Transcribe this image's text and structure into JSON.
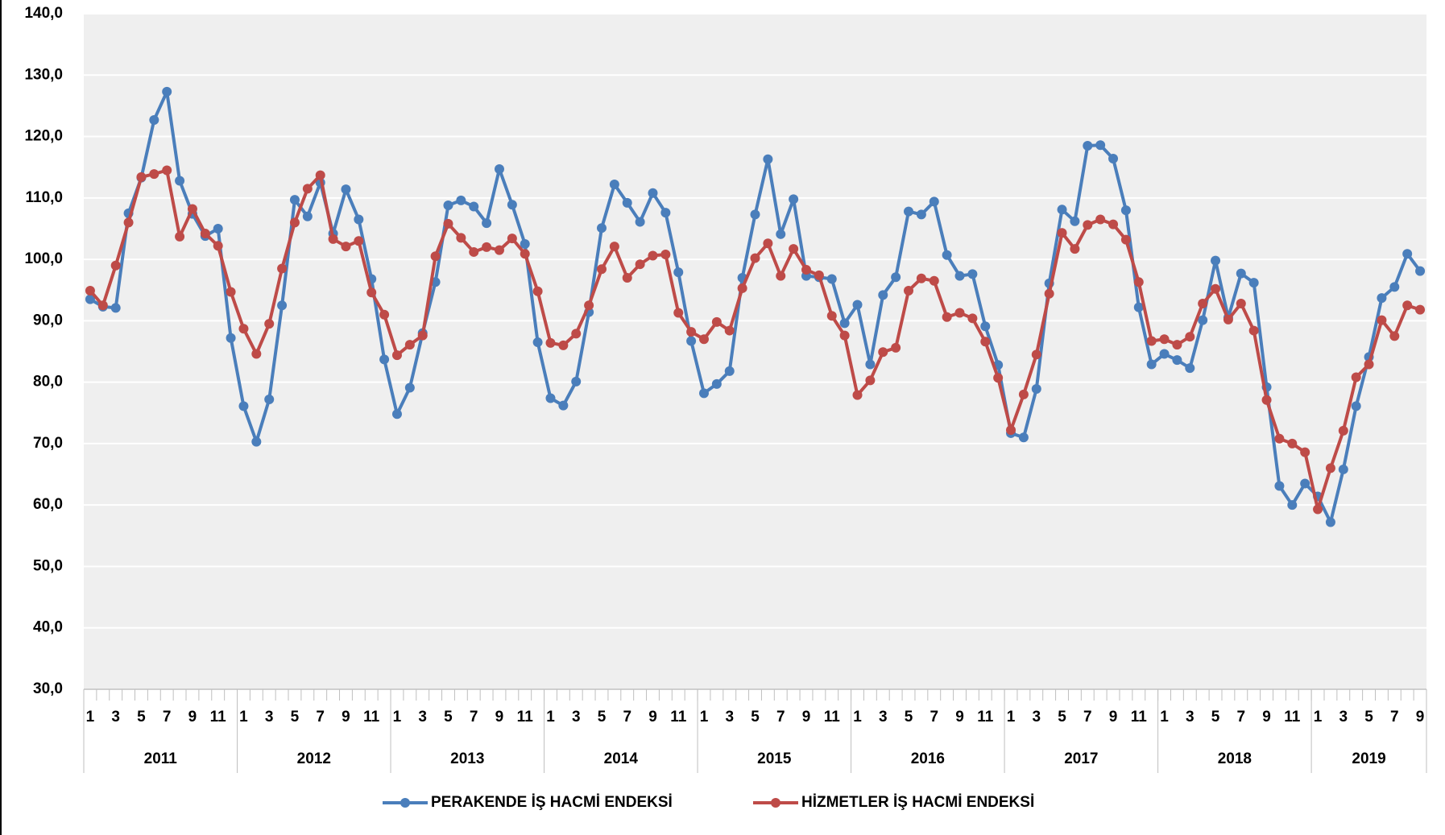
{
  "chart_data": {
    "type": "line",
    "categories": [
      "1",
      null,
      "3",
      null,
      "5",
      null,
      "7",
      null,
      "9",
      null,
      "11",
      null,
      "1",
      null,
      "3",
      null,
      "5",
      null,
      "7",
      null,
      "9",
      null,
      "11",
      null,
      "1",
      null,
      "3",
      null,
      "5",
      null,
      "7",
      null,
      "9",
      null,
      "11",
      null,
      "1",
      null,
      "3",
      null,
      "5",
      null,
      "7",
      null,
      "9",
      null,
      "11",
      null,
      "1",
      null,
      "3",
      null,
      "5",
      null,
      "7",
      null,
      "9",
      null,
      "11",
      null,
      "1",
      null,
      "3",
      null,
      "5",
      null,
      "7",
      null,
      "9",
      null,
      "11",
      null,
      "1",
      null,
      "3",
      null,
      "5",
      null,
      "7",
      null,
      "9",
      null,
      "11",
      null,
      "1",
      null,
      "3",
      null,
      "5",
      null,
      "7",
      null,
      "9",
      null,
      "11",
      null,
      "1",
      null,
      "3",
      null,
      "5",
      null,
      "7",
      null,
      "9"
    ],
    "year_groups": [
      "2011",
      "2012",
      "2013",
      "2014",
      "2015",
      "2016",
      "2017",
      "2018",
      "2019"
    ],
    "series": [
      {
        "name": "PERAKENDE İŞ HACMİ ENDEKSİ",
        "color": "#4a7ebb",
        "values": [
          93.5,
          92.3,
          92.1,
          107.5,
          113.3,
          122.7,
          127.3,
          112.8,
          107.4,
          103.8,
          105.0,
          87.2,
          76.1,
          70.3,
          77.2,
          92.5,
          109.7,
          107.0,
          112.5,
          104.2,
          111.4,
          106.5,
          96.8,
          83.7,
          74.8,
          79.1,
          88.0,
          96.3,
          108.8,
          109.6,
          108.6,
          105.9,
          114.7,
          108.9,
          102.5,
          86.5,
          77.4,
          76.2,
          80.1,
          91.4,
          105.1,
          112.2,
          109.2,
          106.1,
          110.8,
          107.6,
          97.9,
          86.7,
          78.2,
          79.7,
          81.8,
          97.0,
          107.3,
          116.3,
          104.1,
          109.8,
          97.3,
          97.1,
          96.8,
          89.6,
          92.6,
          82.9,
          94.2,
          97.1,
          107.8,
          107.3,
          109.4,
          100.7,
          97.3,
          97.6,
          89.1,
          82.8,
          71.7,
          71.0,
          78.9,
          96.1,
          108.1,
          106.2,
          118.5,
          118.6,
          116.4,
          108.0,
          92.2,
          82.9,
          84.6,
          83.6,
          82.3,
          90.1,
          99.8,
          90.5,
          97.7,
          96.2,
          79.2,
          63.1,
          60.0,
          63.5,
          61.4,
          57.2,
          65.8,
          76.1,
          84.1,
          93.7,
          95.5,
          100.9,
          98.1
        ]
      },
      {
        "name": "HİZMETLER İŞ HACMİ ENDEKSİ",
        "color": "#be4b48",
        "values": [
          94.9,
          92.5,
          99.0,
          106.0,
          113.4,
          113.9,
          114.5,
          103.7,
          108.2,
          104.2,
          102.2,
          94.7,
          88.7,
          84.6,
          89.5,
          98.5,
          106.0,
          111.5,
          113.7,
          103.3,
          102.1,
          103.0,
          94.6,
          91.0,
          84.4,
          86.1,
          87.6,
          100.5,
          105.8,
          103.5,
          101.2,
          102.0,
          101.5,
          103.4,
          100.9,
          94.8,
          86.4,
          86.0,
          87.9,
          92.5,
          98.4,
          102.1,
          97.0,
          99.2,
          100.6,
          100.8,
          91.3,
          88.2,
          87.0,
          89.8,
          88.4,
          95.3,
          100.2,
          102.6,
          97.3,
          101.7,
          98.3,
          97.4,
          90.8,
          87.6,
          77.9,
          80.3,
          84.9,
          85.6,
          94.9,
          96.9,
          96.5,
          90.6,
          91.3,
          90.4,
          86.6,
          80.7,
          72.2,
          78.0,
          84.5,
          94.4,
          104.3,
          101.7,
          105.6,
          106.5,
          105.7,
          103.2,
          96.3,
          86.7,
          87.0,
          86.1,
          87.4,
          92.8,
          95.2,
          90.2,
          92.8,
          88.4,
          77.1,
          70.8,
          70.0,
          68.6,
          59.3,
          66.0,
          72.1,
          80.8,
          82.9,
          90.1,
          87.5,
          92.5,
          91.8
        ]
      }
    ],
    "ylim": [
      30,
      140
    ],
    "yticks": [
      {
        "value": 30,
        "label": "30,0"
      },
      {
        "value": 40,
        "label": "40,0"
      },
      {
        "value": 50,
        "label": "50,0"
      },
      {
        "value": 60,
        "label": "60,0"
      },
      {
        "value": 70,
        "label": "70,0"
      },
      {
        "value": 80,
        "label": "80,0"
      },
      {
        "value": 90,
        "label": "90,0"
      },
      {
        "value": 100,
        "label": "100,0"
      },
      {
        "value": 110,
        "label": "110,0"
      },
      {
        "value": 120,
        "label": "120,0"
      },
      {
        "value": 130,
        "label": "130,0"
      },
      {
        "value": 140,
        "label": "140,0"
      }
    ],
    "grid": true,
    "legend": "bottom"
  }
}
